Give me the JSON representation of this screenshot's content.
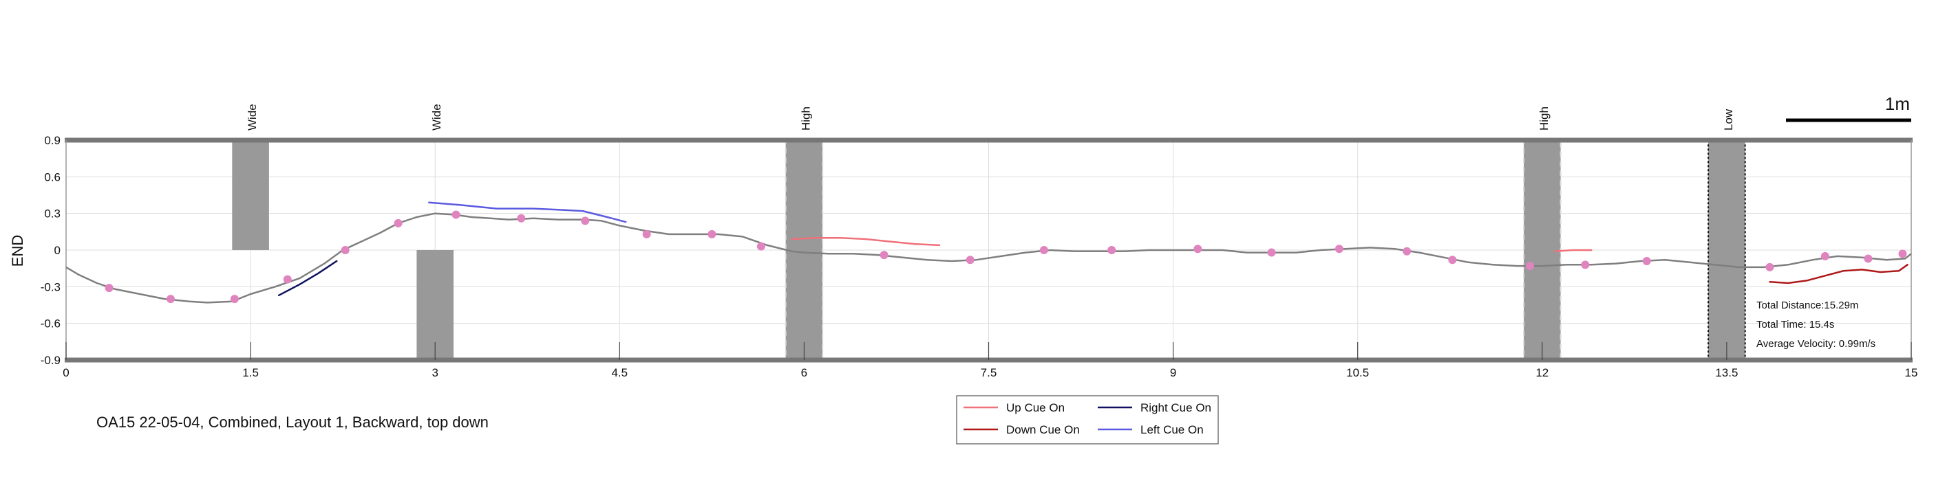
{
  "chart_data": {
    "type": "line",
    "caption": "OA15 22-05-04, Combined, Layout 1, Backward, top down",
    "ylabel": "END",
    "xlim": [
      0,
      15
    ],
    "ylim": [
      -0.9,
      0.9
    ],
    "xticks": [
      0,
      1.5,
      3,
      4.5,
      6,
      7.5,
      9,
      10.5,
      12,
      13.5,
      15
    ],
    "xtick_labels": [
      "0",
      "1.5",
      "3",
      "4.5",
      "6",
      "7.5",
      "9",
      "10.5",
      "12",
      "13.5",
      "15"
    ],
    "yticks": [
      0.9,
      0.6,
      0.3,
      0,
      -0.3,
      -0.6,
      -0.9
    ],
    "ytick_labels": [
      "0.9",
      "0.6",
      "0.3",
      "0",
      "-0.3",
      "-0.6",
      "-0.9"
    ],
    "grid": true,
    "scale_bar": {
      "label": "1m"
    },
    "stats": {
      "distance": "Total Distance:15.29m",
      "time": "Total Time: 15.4s",
      "velocity": "Average Velocity: 0.99m/s"
    },
    "obstacles": [
      {
        "label": "Wide",
        "x0": 1.35,
        "x1": 1.65,
        "y0": 0,
        "y1": 0.9,
        "style": "solid"
      },
      {
        "label": "Wide",
        "x0": 2.85,
        "x1": 3.15,
        "y0": -0.9,
        "y1": 0,
        "style": "solid"
      },
      {
        "label": "High",
        "x0": 5.85,
        "x1": 6.15,
        "y0": -0.9,
        "y1": 0.9,
        "style": "dashed"
      },
      {
        "label": "High",
        "x0": 11.85,
        "x1": 12.15,
        "y0": -0.9,
        "y1": 0.9,
        "style": "dashed"
      },
      {
        "label": "Low",
        "x0": 13.35,
        "x1": 13.65,
        "y0": -0.9,
        "y1": 0.9,
        "style": "dotted"
      }
    ],
    "trajectory": {
      "color": "#7f7f7f",
      "x": [
        0,
        0.1,
        0.25,
        0.4,
        0.6,
        0.8,
        1.0,
        1.15,
        1.35,
        1.5,
        1.7,
        1.9,
        2.1,
        2.25,
        2.4,
        2.55,
        2.7,
        2.85,
        3.0,
        3.15,
        3.3,
        3.45,
        3.6,
        3.8,
        4.0,
        4.2,
        4.35,
        4.5,
        4.7,
        4.9,
        5.1,
        5.3,
        5.5,
        5.7,
        5.9,
        6.0,
        6.2,
        6.4,
        6.6,
        6.8,
        7.0,
        7.2,
        7.4,
        7.6,
        7.8,
        8.0,
        8.2,
        8.4,
        8.6,
        8.8,
        9.0,
        9.2,
        9.4,
        9.6,
        9.8,
        10.0,
        10.2,
        10.4,
        10.6,
        10.8,
        11.0,
        11.2,
        11.4,
        11.6,
        11.8,
        12.0,
        12.2,
        12.4,
        12.6,
        12.8,
        13.0,
        13.2,
        13.4,
        13.6,
        13.8,
        14.0,
        14.2,
        14.4,
        14.6,
        14.8,
        14.95,
        15.0
      ],
      "y": [
        -0.14,
        -0.2,
        -0.27,
        -0.32,
        -0.36,
        -0.4,
        -0.42,
        -0.43,
        -0.42,
        -0.36,
        -0.3,
        -0.23,
        -0.11,
        0.0,
        0.07,
        0.14,
        0.22,
        0.27,
        0.3,
        0.29,
        0.27,
        0.26,
        0.25,
        0.26,
        0.25,
        0.25,
        0.24,
        0.2,
        0.16,
        0.13,
        0.13,
        0.13,
        0.11,
        0.04,
        -0.01,
        -0.02,
        -0.03,
        -0.03,
        -0.04,
        -0.06,
        -0.08,
        -0.09,
        -0.08,
        -0.05,
        -0.02,
        0.0,
        -0.01,
        -0.01,
        -0.01,
        0.0,
        0.0,
        0.0,
        0.0,
        -0.02,
        -0.02,
        -0.02,
        0.0,
        0.01,
        0.02,
        0.01,
        -0.02,
        -0.06,
        -0.1,
        -0.12,
        -0.13,
        -0.13,
        -0.12,
        -0.12,
        -0.11,
        -0.09,
        -0.08,
        -0.1,
        -0.12,
        -0.14,
        -0.14,
        -0.12,
        -0.08,
        -0.05,
        -0.06,
        -0.08,
        -0.07,
        -0.03
      ]
    },
    "markers": {
      "color": "#e084c0",
      "x": [
        0.35,
        0.85,
        1.37,
        1.8,
        2.27,
        2.7,
        3.17,
        3.7,
        4.22,
        4.72,
        5.25,
        5.65,
        6.65,
        7.35,
        7.95,
        8.5,
        9.2,
        9.8,
        10.35,
        10.9,
        11.27,
        11.9,
        12.35,
        12.85,
        13.85,
        14.3,
        14.65,
        14.93
      ],
      "y": [
        -0.31,
        -0.4,
        -0.4,
        -0.24,
        0.0,
        0.22,
        0.29,
        0.26,
        0.24,
        0.13,
        0.13,
        0.03,
        -0.04,
        -0.08,
        0.0,
        0.0,
        0.01,
        -0.02,
        0.01,
        -0.01,
        -0.08,
        -0.13,
        -0.12,
        -0.09,
        -0.14,
        -0.05,
        -0.07,
        -0.03
      ]
    },
    "series": [
      {
        "name": "Up Cue On",
        "color": "#f0707a",
        "segments": [
          {
            "x": [
              5.9,
              6.1,
              6.3,
              6.5,
              6.7,
              6.9,
              7.1
            ],
            "y": [
              0.09,
              0.1,
              0.1,
              0.09,
              0.07,
              0.05,
              0.04
            ]
          },
          {
            "x": [
              12.1,
              12.25,
              12.4
            ],
            "y": [
              -0.01,
              0.0,
              0.0
            ]
          }
        ]
      },
      {
        "name": "Down Cue On",
        "color": "#b01818",
        "segments": [
          {
            "x": [
              13.85,
              14.0,
              14.15,
              14.3,
              14.45,
              14.6,
              14.75,
              14.9,
              14.97
            ],
            "y": [
              -0.26,
              -0.27,
              -0.25,
              -0.21,
              -0.17,
              -0.16,
              -0.18,
              -0.17,
              -0.12
            ]
          }
        ]
      },
      {
        "name": "Right Cue On",
        "color": "#10105e",
        "segments": [
          {
            "x": [
              1.73,
              1.9,
              2.05,
              2.2
            ],
            "y": [
              -0.37,
              -0.28,
              -0.19,
              -0.09
            ]
          }
        ]
      },
      {
        "name": "Left Cue On",
        "color": "#5a5ae0",
        "segments": [
          {
            "x": [
              2.95,
              3.2,
              3.5,
              3.8,
              4.0,
              4.2,
              4.4,
              4.55
            ],
            "y": [
              0.39,
              0.37,
              0.34,
              0.34,
              0.33,
              0.32,
              0.27,
              0.23
            ]
          }
        ]
      }
    ],
    "legend": {
      "position": "bottom-center",
      "columns": 2
    }
  }
}
